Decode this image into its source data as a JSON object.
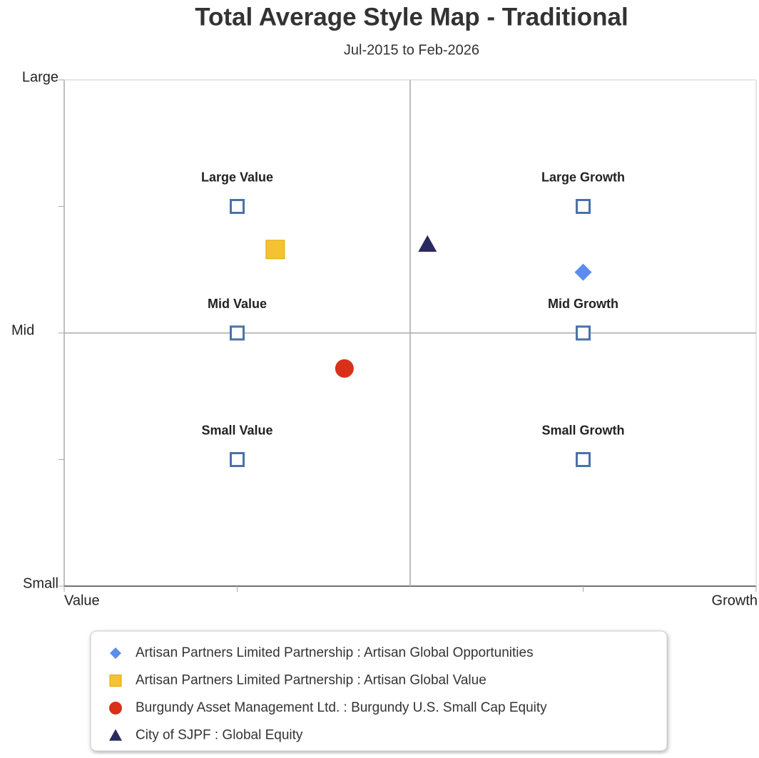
{
  "chart_data": {
    "type": "scatter",
    "title": "Total Average Style Map - Traditional",
    "subtitle": "Jul-2015 to Feb-2026",
    "xlim": [
      -1,
      1
    ],
    "ylim": [
      -1,
      1
    ],
    "xticks": [
      {
        "value": -1,
        "label": "Value"
      },
      {
        "value": 1,
        "label": "Growth"
      }
    ],
    "yticks": [
      {
        "value": -1,
        "label": "Small"
      },
      {
        "value": 0,
        "label": "Mid"
      },
      {
        "value": 1,
        "label": "Large"
      }
    ],
    "minor_xticks": [
      -0.5,
      0.5
    ],
    "minor_yticks": [
      -0.5,
      0.5
    ],
    "xref": 0,
    "yref": 0,
    "style_boxes": {
      "color": "#4a72a8",
      "labels": [
        "Large Value",
        "Large Growth",
        "Mid Value",
        "Mid Growth",
        "Small Value",
        "Small Growth"
      ],
      "x": [
        -0.5,
        0.5,
        -0.5,
        0.5,
        -0.5,
        0.5
      ],
      "y": [
        0.5,
        0.5,
        0,
        0,
        -0.5,
        -0.5
      ]
    },
    "series": [
      {
        "name": "Artisan Partners Limited Partnership : Artisan Global Opportunities",
        "color": "#5b8def",
        "marker": "diamond",
        "x": [
          0.5
        ],
        "y": [
          0.24
        ]
      },
      {
        "name": "Artisan Partners Limited Partnership : Artisan Global Value",
        "color": "#f5c232",
        "marker": "square",
        "x": [
          -0.39
        ],
        "y": [
          0.33
        ]
      },
      {
        "name": "Burgundy Asset Management Ltd. : Burgundy U.S. Small Cap Equity",
        "color": "#d9301a",
        "marker": "circle",
        "x": [
          -0.19
        ],
        "y": [
          -0.14
        ]
      },
      {
        "name": "City of SJPF : Global Equity",
        "color": "#2b2a5e",
        "marker": "triangle",
        "x": [
          0.05
        ],
        "y": [
          0.35
        ]
      }
    ]
  }
}
